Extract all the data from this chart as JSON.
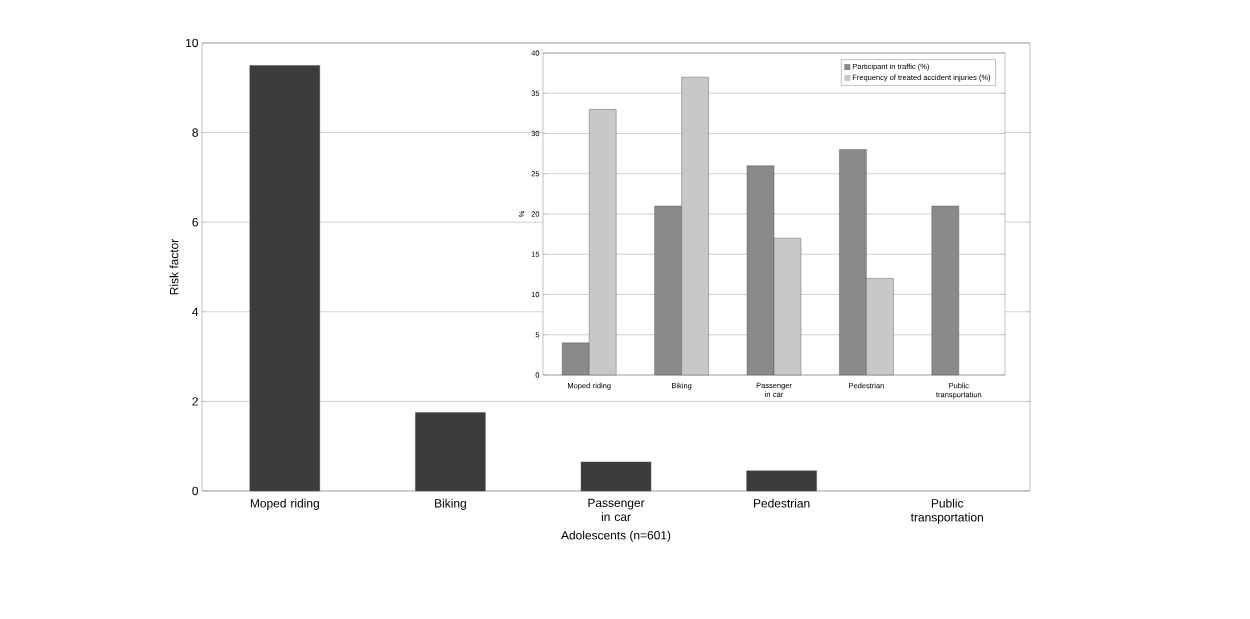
{
  "chart_data": [
    {
      "type": "bar",
      "categories": [
        "Moped riding",
        "Biking",
        "Passenger in car",
        "Pedestrian",
        "Public transportation"
      ],
      "xlabel": "Adolescents (n=601)",
      "ylabel": "Risk factor",
      "values": [
        9.5,
        1.75,
        0.65,
        0.45,
        null
      ],
      "color": "#3c3c3e",
      "ylim": [
        0,
        10
      ],
      "yticks": [
        0,
        2,
        4,
        6,
        8,
        10
      ],
      "grid": "y"
    },
    {
      "type": "bar",
      "categories": [
        "Moped riding",
        "Biking",
        "Passenger in car",
        "Pedestrian",
        "Public transportation"
      ],
      "ylabel": "%",
      "series": [
        {
          "name": "Participant in traffic (%)",
          "color": "#8a8a8a",
          "values": [
            4,
            21,
            26,
            28,
            21
          ]
        },
        {
          "name": "Frequency of treated accident injuries (%)",
          "color": "#c8c8c8",
          "values": [
            33,
            37,
            17,
            12,
            null
          ]
        }
      ],
      "ylim": [
        0,
        40
      ],
      "yticks": [
        0,
        5,
        10,
        15,
        20,
        25,
        30,
        35,
        40
      ],
      "grid": "y",
      "legend": "top right"
    }
  ]
}
